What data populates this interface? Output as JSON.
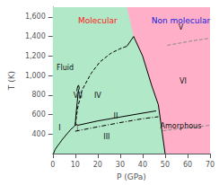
{
  "chart_data": {
    "type": "line",
    "xlabel": "P (GPa)",
    "ylabel": "T (K)",
    "xlim": [
      0,
      70
    ],
    "ylim": [
      200,
      1700
    ],
    "xticks": [
      0,
      10,
      20,
      30,
      40,
      50,
      60,
      70
    ],
    "yticks": [
      400,
      600,
      800,
      1000,
      1200,
      1400,
      1600
    ],
    "grid": false,
    "series": [
      {
        "type": "area",
        "color": "#b0e8c8",
        "x": [
          0,
          70,
          70,
          0
        ],
        "values": [
          200,
          200,
          1700,
          1700
        ]
      },
      {
        "type": "area",
        "color": "#ffb0c8",
        "x": [
          33,
          36,
          40,
          44,
          47,
          50,
          70,
          70,
          33
        ],
        "values": [
          1700,
          1400,
          1200,
          900,
          700,
          200,
          200,
          1700,
          1700
        ]
      },
      {
        "type": "line",
        "color": "#000000",
        "line_style": "solid",
        "x": [
          33,
          36,
          40,
          44,
          47,
          50
        ],
        "values": [
          1300,
          1400,
          1200,
          900,
          700,
          200
        ]
      },
      {
        "type": "line",
        "color": "#000000",
        "line_style": "solid",
        "x": [
          0.3,
          1,
          2,
          3,
          4,
          5,
          6,
          7,
          8,
          9,
          10,
          11
        ],
        "values": [
          200,
          240,
          275,
          305,
          338,
          366,
          394,
          420,
          448,
          468,
          490,
          500
        ]
      },
      {
        "type": "line",
        "color": "#000000",
        "line_style": "dashed",
        "x": [
          10,
          11,
          13,
          17,
          21,
          26,
          30,
          33
        ],
        "values": [
          490,
          660,
          850,
          1020,
          1140,
          1230,
          1275,
          1300
        ]
      },
      {
        "type": "line",
        "color": "#808080",
        "line_style": "solid",
        "x": [
          11,
          11
        ],
        "values": [
          430,
          490
        ]
      },
      {
        "type": "line",
        "color": "#000000",
        "line_style": "solid",
        "x": [
          10.0,
          10.2,
          10.5,
          10.9,
          11.2,
          11.5,
          11.8,
          11.5,
          11.2,
          10.9,
          10.7
        ],
        "values": [
          490,
          560,
          640,
          730,
          800,
          850,
          870,
          900,
          895,
          870,
          840
        ]
      },
      {
        "type": "line",
        "color": "#000000",
        "line_style": "solid",
        "x": [
          11,
          20,
          30,
          40,
          46
        ],
        "values": [
          490,
          535,
          575,
          615,
          638
        ]
      },
      {
        "type": "line",
        "color": "#000000",
        "line_style": "dashdot",
        "x": [
          10,
          20,
          30,
          40,
          47
        ],
        "values": [
          430,
          475,
          518,
          558,
          578
        ]
      },
      {
        "type": "line",
        "color": "#888888",
        "line_style": "dashed",
        "x": [
          49,
          55,
          60,
          65,
          70
        ],
        "values": [
          435,
          452,
          465,
          478,
          490
        ]
      },
      {
        "type": "line",
        "color": "#888888",
        "line_style": "dashed",
        "x": [
          51,
          56,
          62,
          68,
          70
        ],
        "values": [
          1310,
          1330,
          1355,
          1375,
          1385
        ]
      }
    ],
    "annotations": [
      {
        "text": "Molecular",
        "x": 20,
        "y": 1560,
        "color": "#ff2020"
      },
      {
        "text": "Non molecular",
        "x": 57,
        "y": 1560,
        "color": "#2020dd"
      },
      {
        "text": "Fluid",
        "x": 5.5,
        "y": 1080
      },
      {
        "text": "I",
        "x": 3.0,
        "y": 460
      },
      {
        "text": "II",
        "x": 28,
        "y": 578
      },
      {
        "text": "III",
        "x": 24,
        "y": 370
      },
      {
        "text": "IV",
        "x": 20,
        "y": 790
      },
      {
        "text": "V",
        "x": 57,
        "y": 1490
      },
      {
        "text": "VI",
        "x": 58,
        "y": 940
      },
      {
        "text": "VII",
        "x": 11.2,
        "y": 790
      },
      {
        "text": "Amorphous",
        "x": 57,
        "y": 480
      }
    ]
  }
}
